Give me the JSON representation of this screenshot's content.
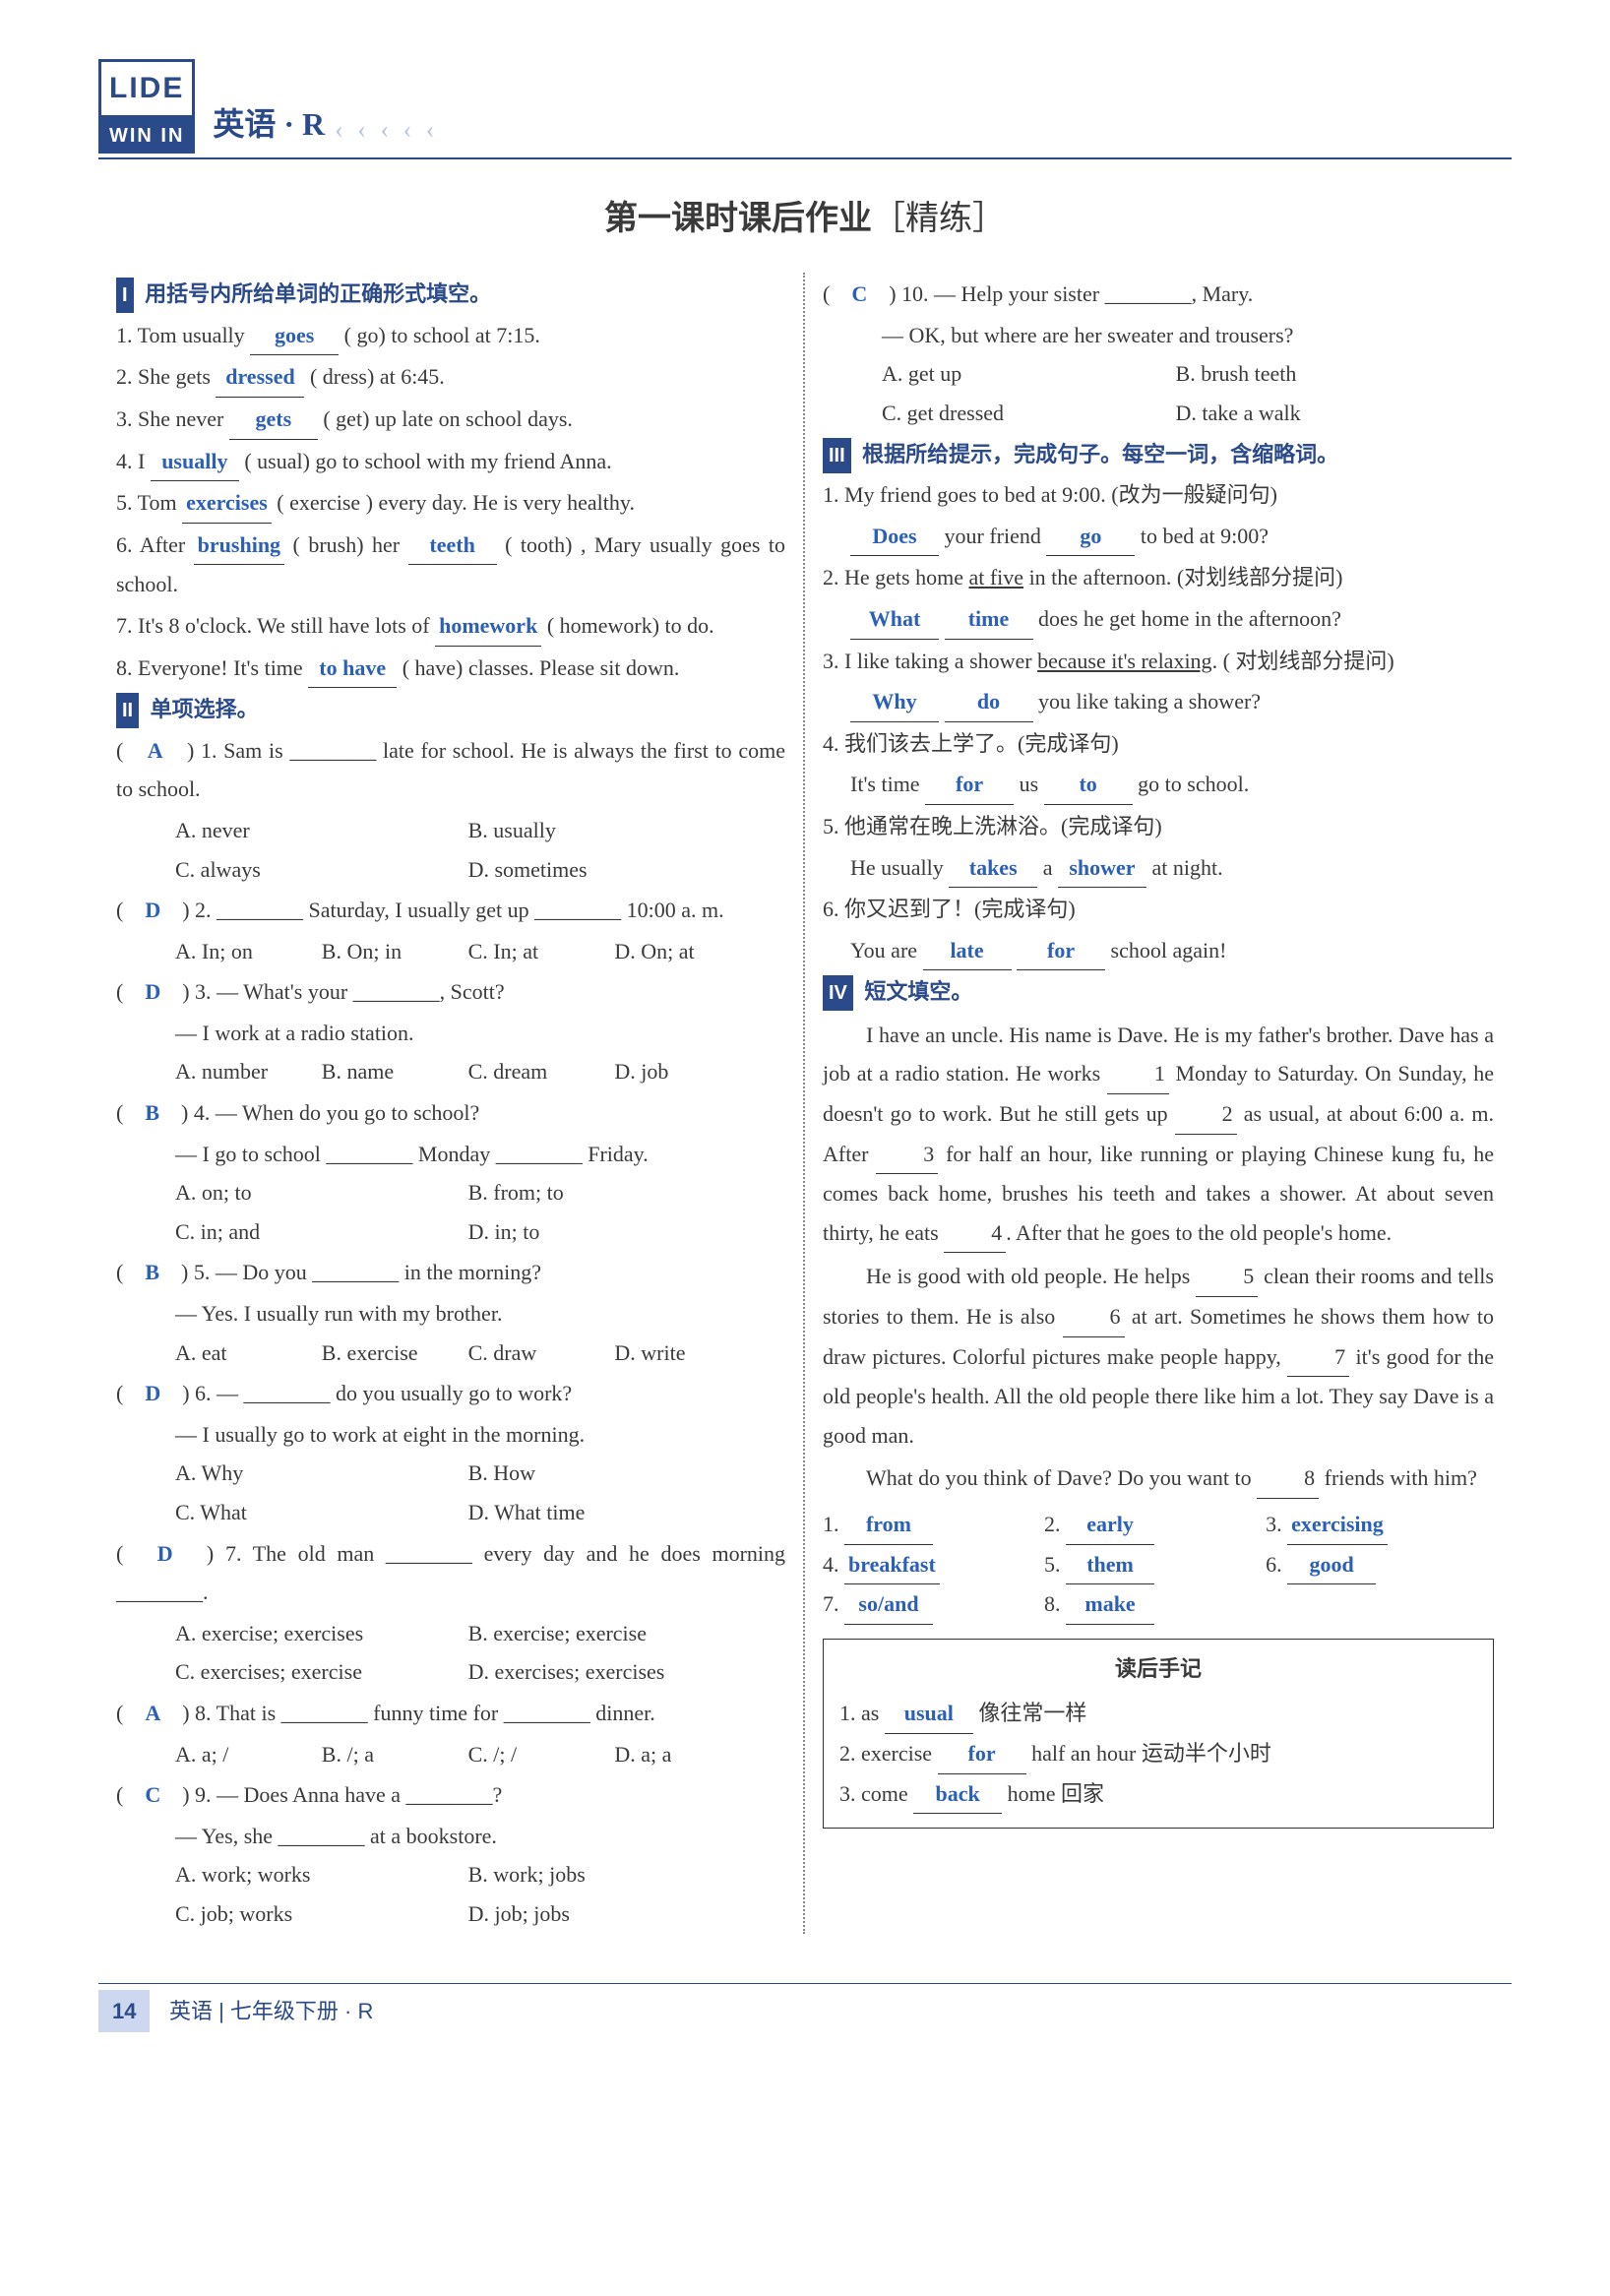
{
  "header": {
    "logoTop": "LIDE",
    "logoBot": "WIN IN",
    "subject": "英语 · R",
    "chev": "‹ ‹ ‹ ‹ ‹"
  },
  "title": {
    "main": "第一课时课后作业",
    "sub": "［精练］"
  },
  "s1": {
    "badge": "I",
    "title": "用括号内所给单词的正确形式填空。",
    "q1a": "1. Tom usually ",
    "q1b": " ( go) to school at 7:15.",
    "a1": "goes",
    "q2a": "2. She gets ",
    "q2b": " ( dress) at 6:45.",
    "a2": "dressed",
    "q3a": "3. She never ",
    "q3b": " ( get) up late on school days.",
    "a3": "gets",
    "q4a": "4. I ",
    "q4b": " ( usual) go to school with my friend Anna.",
    "a4": "usually",
    "q5a": "5. Tom ",
    "q5b": " ( exercise ) every day. He is very healthy.",
    "a5": "exercises",
    "q6a": "6. After ",
    "q6b": " ( brush) her ",
    "q6c": " ( tooth) , Mary usually goes to school.",
    "a6a": "brushing",
    "a6b": "teeth",
    "q7a": "7. It's 8 o'clock. We still have lots of ",
    "q7b": " ( homework) to do.",
    "a7": "homework",
    "q8a": "8. Everyone! It's time ",
    "q8b": " ( have) classes. Please sit down.",
    "a8": "to have"
  },
  "s2": {
    "badge": "II",
    "title": "单项选择。",
    "q1": {
      "ans": "A",
      "stem": "1. Sam is ________ late for school. He is always the first to come to school.",
      "A": "A. never",
      "B": "B. usually",
      "C": "C. always",
      "D": "D. sometimes"
    },
    "q2": {
      "ans": "D",
      "stem": "2. ________ Saturday, I usually get up ________ 10:00 a. m.",
      "A": "A. In; on",
      "B": "B. On; in",
      "C": "C. In; at",
      "D": "D. On; at"
    },
    "q3": {
      "ans": "D",
      "stem1": "3. — What's your ________, Scott?",
      "stem2": "— I work at a radio station.",
      "A": "A. number",
      "B": "B. name",
      "C": "C. dream",
      "D": "D. job"
    },
    "q4": {
      "ans": "B",
      "stem1": "4. — When do you go to school?",
      "stem2": "— I go to school ________ Monday ________ Friday.",
      "A": "A. on; to",
      "B": "B. from; to",
      "C": "C. in; and",
      "D": "D. in; to"
    },
    "q5": {
      "ans": "B",
      "stem1": "5. — Do you ________ in the morning?",
      "stem2": "— Yes. I usually run with my brother.",
      "A": "A. eat",
      "B": "B. exercise",
      "C": "C. draw",
      "D": "D. write"
    },
    "q6": {
      "ans": "D",
      "stem1": "6. — ________ do you usually go to work?",
      "stem2": "— I usually go to work at eight in the morning.",
      "A": "A. Why",
      "B": "B. How",
      "C": "C. What",
      "D": "D. What time"
    },
    "q7": {
      "ans": "D",
      "stem": "7. The old man ________ every day and he does morning ________.",
      "A": "A. exercise; exercises",
      "B": "B. exercise; exercise",
      "C": "C. exercises; exercise",
      "D": "D. exercises; exercises"
    },
    "q8": {
      "ans": "A",
      "stem": "8. That is ________ funny time for ________ dinner.",
      "A": "A. a; /",
      "B": "B. /; a",
      "C": "C. /; /",
      "D": "D. a; a"
    },
    "q9": {
      "ans": "C",
      "stem1": "9. — Does Anna have a ________?",
      "stem2": "— Yes, she ________ at a bookstore.",
      "A": "A. work; works",
      "B": "B. work; jobs",
      "C": "C. job; works",
      "D": "D. job; jobs"
    },
    "q10": {
      "ans": "C",
      "stem1": "10. — Help your sister ________, Mary.",
      "stem2": "— OK, but where are her sweater and trousers?",
      "A": "A. get up",
      "B": "B. brush teeth",
      "C": "C. get dressed",
      "D": "D. take a walk"
    }
  },
  "s3": {
    "badge": "III",
    "title": "根据所给提示，完成句子。每空一词，含缩略词。",
    "q1": {
      "text": "1. My friend goes to bed at 9:00. (改为一般疑问句)",
      "fill1": "Does",
      "mid1": " your friend ",
      "fill2": "go",
      "tail": " to bed at 9:00?"
    },
    "q2": {
      "text_a": "2. He gets home ",
      "ul": "at five",
      "text_b": " in the afternoon. (对划线部分提问)",
      "fill1": "What",
      "fill2": "time",
      "tail": " does he get home in the afternoon?"
    },
    "q3": {
      "text_a": "3. I like taking a shower ",
      "ul": "because it's relaxing",
      "text_b": ". ( 对划线部分提问)",
      "fill1": "Why",
      "fill2": "do",
      "tail": " you like taking a shower?"
    },
    "q4": {
      "text": "4. 我们该去上学了。(完成译句)",
      "lead": "It's time ",
      "fill1": "for",
      "mid1": " us ",
      "fill2": "to",
      "tail": " go to school."
    },
    "q5": {
      "text": "5. 他通常在晚上洗淋浴。(完成译句)",
      "lead": "He usually ",
      "fill1": "takes",
      "mid1": " a ",
      "fill2": "shower",
      "tail": " at night."
    },
    "q6": {
      "text": "6. 你又迟到了！(完成译句)",
      "lead": "You are ",
      "fill1": "late",
      "mid1": " ",
      "fill2": "for",
      "tail": " school again!"
    }
  },
  "s4": {
    "badge": "IV",
    "title": "短文填空。",
    "p1": "I have an uncle. His name is Dave. He is my father's brother. Dave has a job at a radio station. He works ",
    "p1b": " Monday to Saturday. On Sunday, he doesn't go to work. But he still gets up ",
    "p1c": " as usual, at about 6:00 a. m. After ",
    "p1d": " for half an hour, like running or playing Chinese kung fu, he comes back home, brushes his teeth and takes a shower. At about seven thirty, he eats ",
    "p1e": ". After that he goes to the old people's home.",
    "p2a": "He is good with old people. He helps ",
    "p2b": " clean their rooms and tells stories to them. He is also ",
    "p2c": " at art. Sometimes he shows them how to draw pictures. Colorful pictures make people happy, ",
    "p2d": " it's good for the old people's health. All the old people there like him a lot. They say Dave is a good man.",
    "p3a": "What do you think of Dave? Do you want to ",
    "p3b": " friends with him?",
    "answers": {
      "1": "from",
      "2": "early",
      "3": "exercising",
      "4": "breakfast",
      "5": "them",
      "6": "good",
      "7": "so/and",
      "8": "make"
    }
  },
  "notes": {
    "title": "读后手记",
    "n1a": "1. as ",
    "n1f": "usual",
    "n1b": " 像往常一样",
    "n2a": "2. exercise ",
    "n2f": "for",
    "n2b": " half an hour 运动半个小时",
    "n3a": "3. come ",
    "n3f": "back",
    "n3b": " home 回家"
  },
  "footer": {
    "page": "14",
    "text": "英语 | 七年级下册 · R"
  },
  "num": {
    "1": "1",
    "2": "2",
    "3": "3",
    "4": "4",
    "5": "5",
    "6": "6",
    "7": "7",
    "8": "8"
  },
  "lbl": {
    "1": "1. ",
    "2": "2. ",
    "3": "3. ",
    "4": "4. ",
    "5": "5. ",
    "6": "6. ",
    "7": "7. ",
    "8": "8. "
  }
}
